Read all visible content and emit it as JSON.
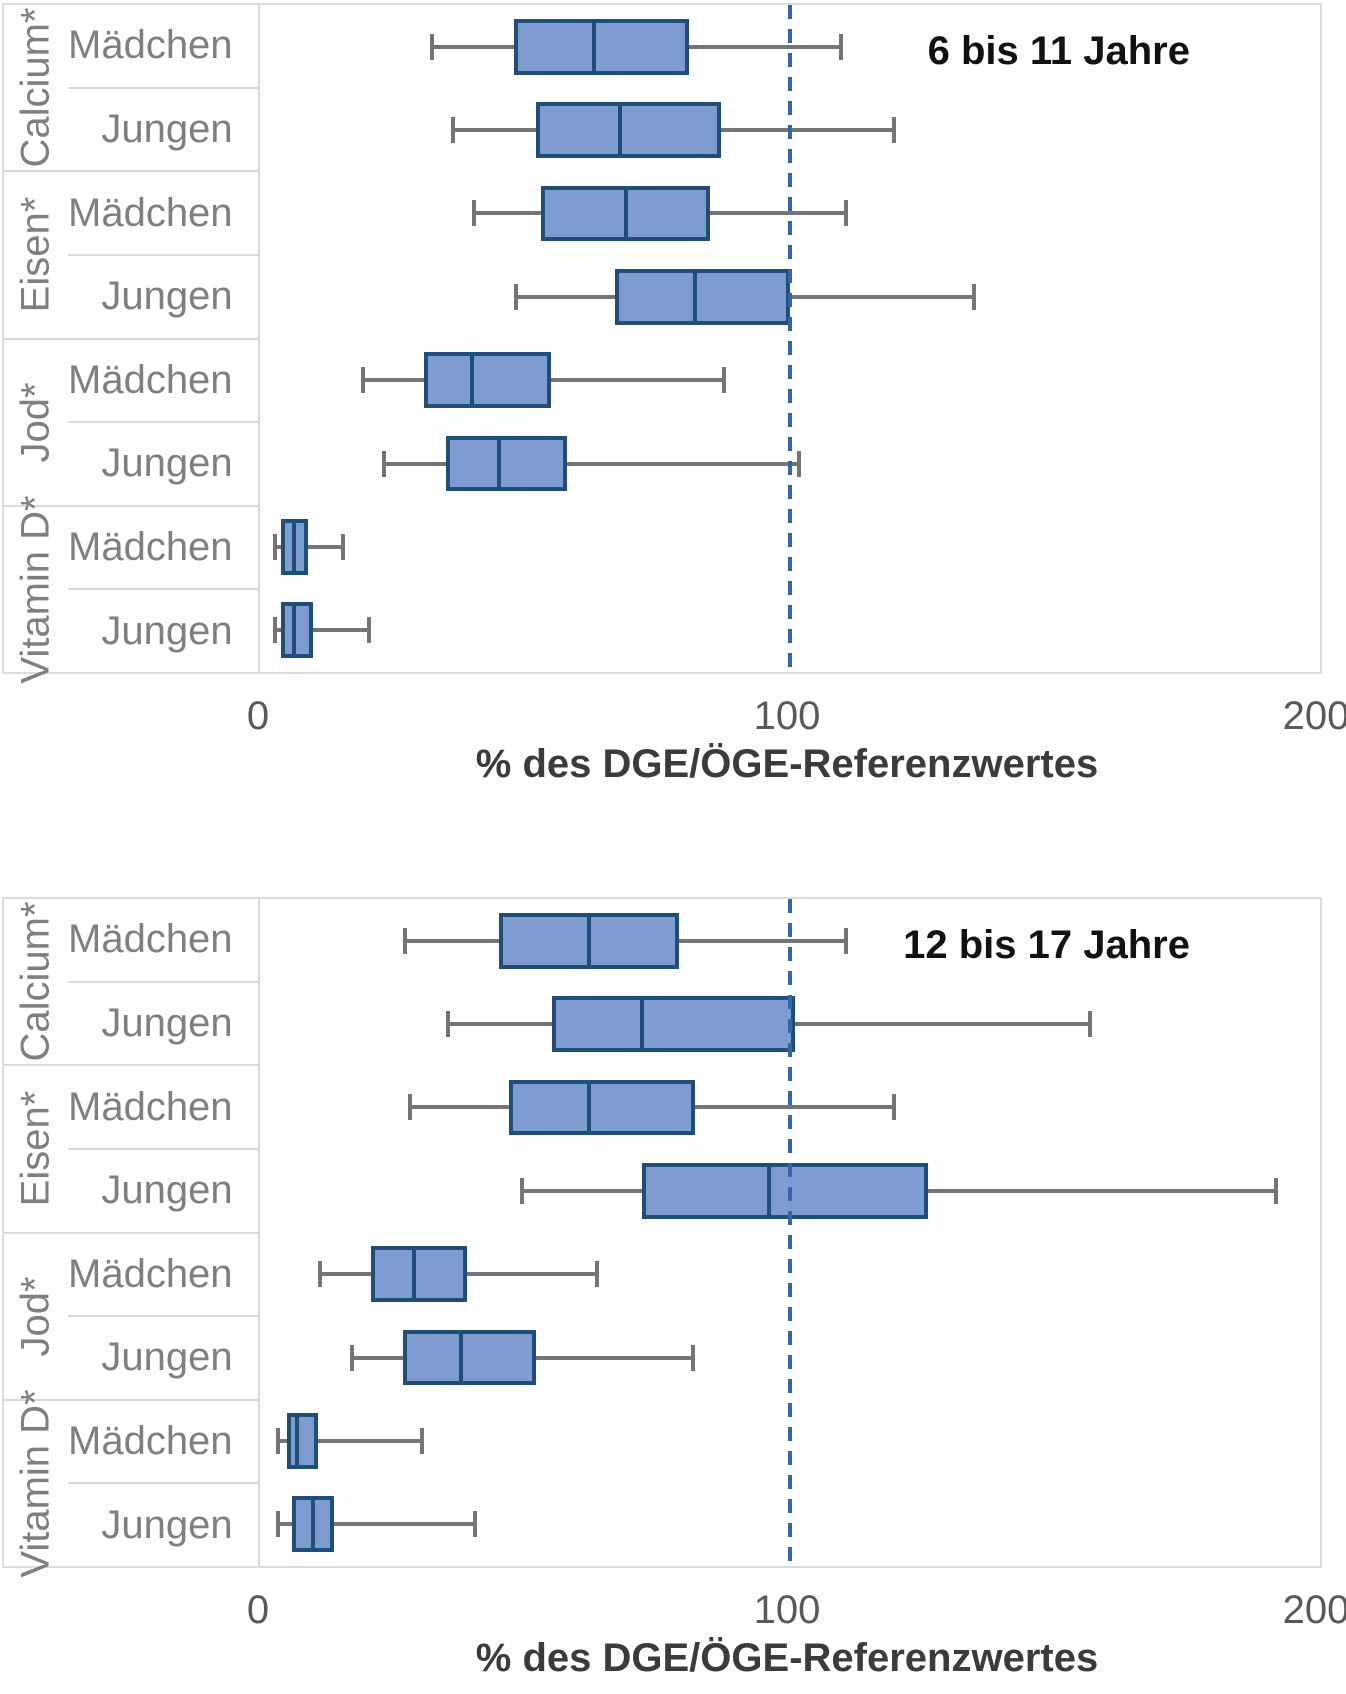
{
  "style": {
    "box_fill": "#7e9cd0",
    "box_border": "#1f4e79",
    "median_color": "#1f4e79",
    "whisker_color": "#757575",
    "reference_line_color": "#3563ac",
    "separator_color": "#d9d9d9",
    "label_text_color": "#7f7f7f",
    "tick_text_color": "#595959"
  },
  "chart_data": [
    {
      "type": "boxplot",
      "orientation": "horizontal",
      "title": "6 bis 11 Jahre",
      "xlabel": "% des DGE/ÖGE-Referenzwertes",
      "xlim": [
        0,
        200
      ],
      "xticks": [
        0,
        100,
        200
      ],
      "reference_line_x": 100,
      "grid": false,
      "groups": [
        "Calcium*",
        "Eisen*",
        "Jod*",
        "Vitamin D*"
      ],
      "rows": [
        {
          "group": "Calcium*",
          "label": "Mädchen",
          "whisker_low": 32,
          "q1": 48,
          "median": 63,
          "q3": 81,
          "whisker_high": 110
        },
        {
          "group": "Calcium*",
          "label": "Jungen",
          "whisker_low": 36,
          "q1": 52,
          "median": 68,
          "q3": 87,
          "whisker_high": 120
        },
        {
          "group": "Eisen*",
          "label": "Mädchen",
          "whisker_low": 40,
          "q1": 53,
          "median": 69,
          "q3": 85,
          "whisker_high": 111
        },
        {
          "group": "Eisen*",
          "label": "Jungen",
          "whisker_low": 48,
          "q1": 67,
          "median": 82,
          "q3": 100,
          "whisker_high": 135
        },
        {
          "group": "Jod*",
          "label": "Mädchen",
          "whisker_low": 19,
          "q1": 31,
          "median": 40,
          "q3": 55,
          "whisker_high": 88
        },
        {
          "group": "Jod*",
          "label": "Jungen",
          "whisker_low": 23,
          "q1": 35,
          "median": 45,
          "q3": 58,
          "whisker_high": 102
        },
        {
          "group": "Vitamin D*",
          "label": "Mädchen",
          "whisker_low": 2.5,
          "q1": 4,
          "median": 6.5,
          "q3": 9,
          "whisker_high": 16
        },
        {
          "group": "Vitamin D*",
          "label": "Jungen",
          "whisker_low": 2.5,
          "q1": 4,
          "median": 6.5,
          "q3": 10,
          "whisker_high": 21
        }
      ]
    },
    {
      "type": "boxplot",
      "orientation": "horizontal",
      "title": "12 bis 17 Jahre",
      "xlabel": "% des DGE/ÖGE-Referenzwertes",
      "xlim": [
        0,
        200
      ],
      "xticks": [
        0,
        100,
        200
      ],
      "reference_line_x": 100,
      "grid": false,
      "groups": [
        "Calcium*",
        "Eisen*",
        "Jod*",
        "Vitamin D*"
      ],
      "rows": [
        {
          "group": "Calcium*",
          "label": "Mädchen",
          "whisker_low": 27,
          "q1": 45,
          "median": 62,
          "q3": 79,
          "whisker_high": 111
        },
        {
          "group": "Calcium*",
          "label": "Jungen",
          "whisker_low": 35,
          "q1": 55,
          "median": 72,
          "q3": 101,
          "whisker_high": 157
        },
        {
          "group": "Eisen*",
          "label": "Mädchen",
          "whisker_low": 28,
          "q1": 47,
          "median": 62,
          "q3": 82,
          "whisker_high": 120
        },
        {
          "group": "Eisen*",
          "label": "Jungen",
          "whisker_low": 49,
          "q1": 72,
          "median": 96,
          "q3": 126,
          "whisker_high": 192
        },
        {
          "group": "Jod*",
          "label": "Mädchen",
          "whisker_low": 11,
          "q1": 21,
          "median": 29,
          "q3": 39,
          "whisker_high": 64
        },
        {
          "group": "Jod*",
          "label": "Jungen",
          "whisker_low": 17,
          "q1": 27,
          "median": 38,
          "q3": 52,
          "whisker_high": 82
        },
        {
          "group": "Vitamin D*",
          "label": "Mädchen",
          "whisker_low": 3,
          "q1": 5,
          "median": 7,
          "q3": 11,
          "whisker_high": 31
        },
        {
          "group": "Vitamin D*",
          "label": "Jungen",
          "whisker_low": 3,
          "q1": 6,
          "median": 10,
          "q3": 14,
          "whisker_high": 41
        }
      ]
    }
  ]
}
